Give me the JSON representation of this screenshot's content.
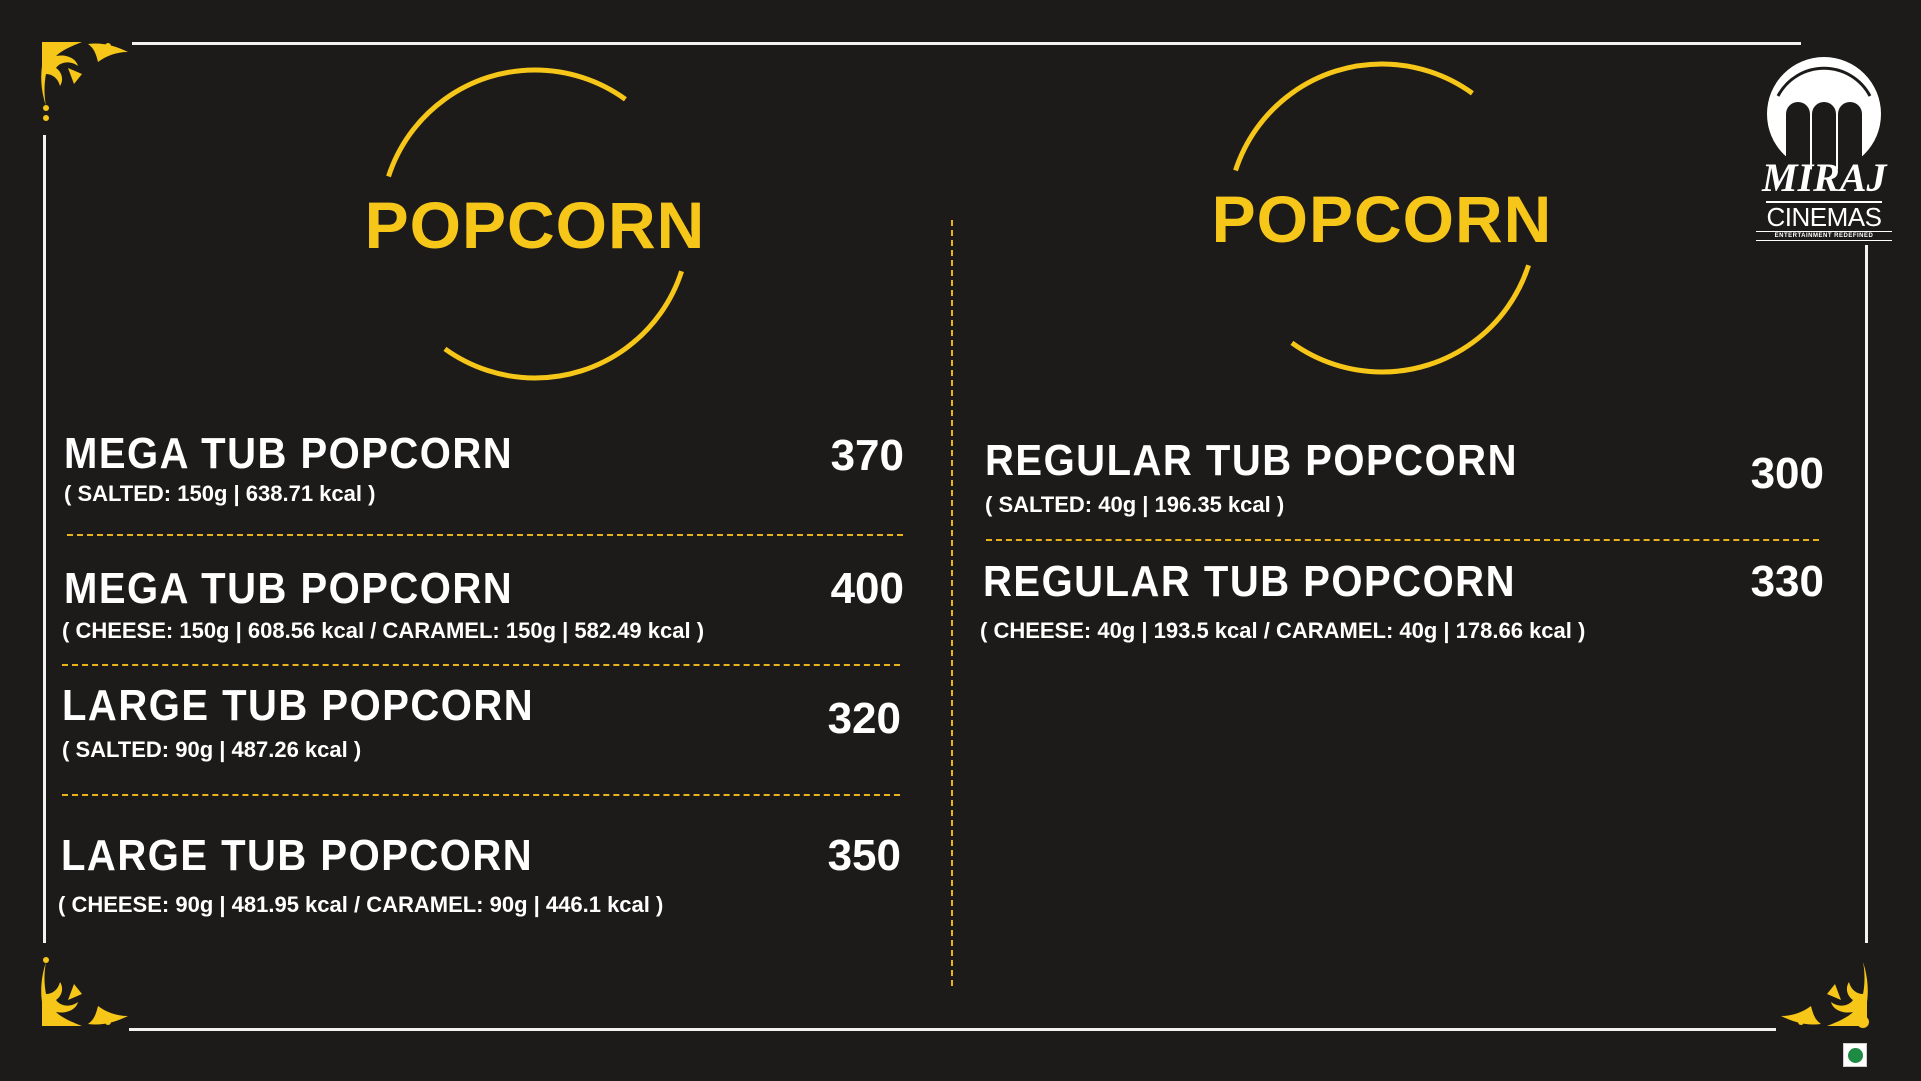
{
  "colors": {
    "background": "#1d1b19",
    "accent": "#f6c619",
    "text": "#ffffff",
    "veg_mark": "#1e8b45"
  },
  "brand": {
    "name": "MIRAJ",
    "sub": "CINEMAS",
    "tagline": "ENTERTAINMENT REDEFINED"
  },
  "left": {
    "heading": "POPCORN",
    "items": [
      {
        "name": "MEGA TUB POPCORN",
        "details": "( SALTED: 150g | 638.71 kcal )",
        "price": "370"
      },
      {
        "name": "MEGA TUB POPCORN",
        "details": "( CHEESE: 150g | 608.56 kcal  /  CARAMEL: 150g | 582.49 kcal )",
        "price": "400"
      },
      {
        "name": "LARGE TUB POPCORN",
        "details": "( SALTED: 90g | 487.26 kcal )",
        "price": "320"
      },
      {
        "name": "LARGE TUB POPCORN",
        "details": "( CHEESE: 90g | 481.95 kcal  /  CARAMEL: 90g | 446.1 kcal )",
        "price": "350"
      }
    ]
  },
  "right": {
    "heading": "POPCORN",
    "items": [
      {
        "name": "REGULAR TUB POPCORN",
        "details": "( SALTED: 40g | 196.35 kcal )",
        "price": "300"
      },
      {
        "name": "REGULAR TUB POPCORN",
        "details": "( CHEESE: 40g | 193.5 kcal  /  CARAMEL: 40g | 178.66 kcal )",
        "price": "330"
      }
    ]
  },
  "icons": {
    "corner": "ornament-icon",
    "veg": "veg-mark-icon",
    "logo": "miraj-logo"
  }
}
